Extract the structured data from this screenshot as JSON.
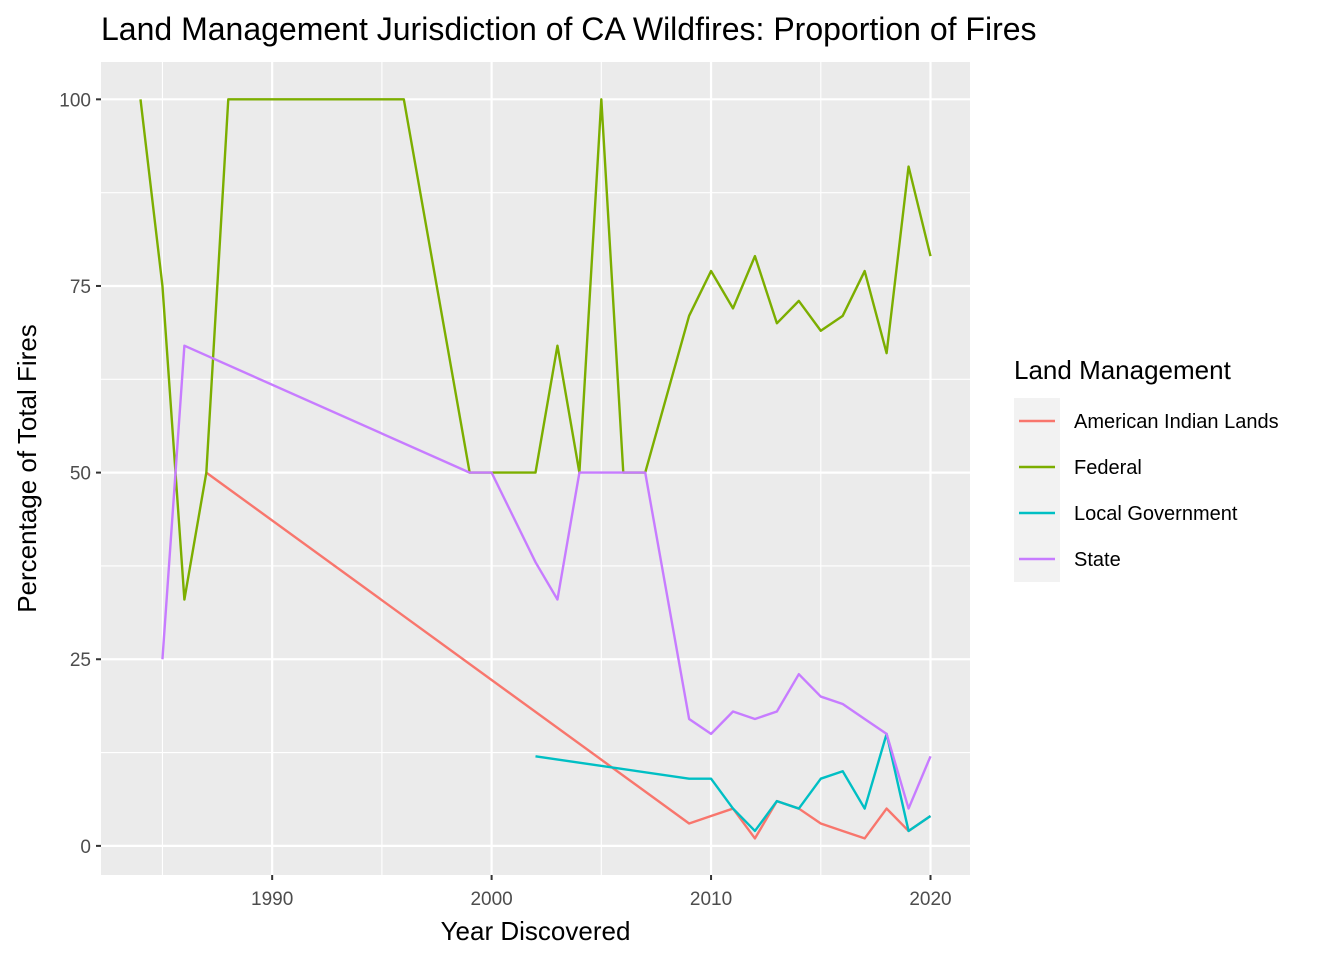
{
  "chart_data": {
    "type": "line",
    "title": "Land Management Jurisdiction of CA Wildfires: Proportion of Fires",
    "xlabel": "Year Discovered",
    "ylabel": "Percentage of Total Fires",
    "xlim": [
      1982.2,
      2021.8
    ],
    "ylim": [
      -3.9,
      105
    ],
    "x_ticks": [
      1990,
      2000,
      2010,
      2020
    ],
    "y_ticks": [
      0,
      25,
      50,
      75,
      100
    ],
    "x_minor": [
      1985,
      1995,
      2005,
      2015
    ],
    "y_minor": [
      12.5,
      37.5,
      62.5,
      87.5
    ],
    "grid": true,
    "legend_position": "right",
    "legend_title": "Land Management",
    "series": [
      {
        "name": "American Indian Lands",
        "color": "#F8766D",
        "x": [
          1987,
          2009,
          2010,
          2011,
          2012,
          2013,
          2014,
          2015,
          2016,
          2017,
          2018,
          2019,
          2020
        ],
        "y": [
          50,
          3,
          4,
          5,
          1,
          6,
          5,
          3,
          2,
          1,
          5,
          2,
          4
        ]
      },
      {
        "name": "Federal",
        "color": "#7CAE00",
        "x": [
          1984,
          1985,
          1986,
          1987,
          1988,
          1996,
          1999,
          2000,
          2002,
          2003,
          2004,
          2005,
          2006,
          2007,
          2009,
          2010,
          2011,
          2012,
          2013,
          2014,
          2015,
          2016,
          2017,
          2018,
          2019,
          2020
        ],
        "y": [
          100,
          75,
          33,
          50,
          100,
          100,
          50,
          50,
          50,
          67,
          50,
          100,
          50,
          50,
          71,
          77,
          72,
          79,
          70,
          73,
          69,
          71,
          77,
          66,
          91,
          79
        ]
      },
      {
        "name": "Local Government",
        "color": "#00BFC4",
        "x": [
          2002,
          2009,
          2010,
          2011,
          2012,
          2013,
          2014,
          2015,
          2016,
          2017,
          2018,
          2019,
          2020
        ],
        "y": [
          12,
          9,
          9,
          5,
          2,
          6,
          5,
          9,
          10,
          5,
          15,
          2,
          4
        ]
      },
      {
        "name": "State",
        "color": "#C77CFF",
        "x": [
          1985,
          1986,
          1999,
          2000,
          2002,
          2003,
          2004,
          2005,
          2006,
          2007,
          2009,
          2010,
          2011,
          2012,
          2013,
          2014,
          2015,
          2016,
          2017,
          2018,
          2019,
          2020
        ],
        "y": [
          25,
          67,
          50,
          50,
          38,
          33,
          50,
          50,
          50,
          50,
          17,
          15,
          18,
          17,
          18,
          23,
          20,
          19,
          17,
          15,
          5,
          12
        ]
      }
    ]
  }
}
